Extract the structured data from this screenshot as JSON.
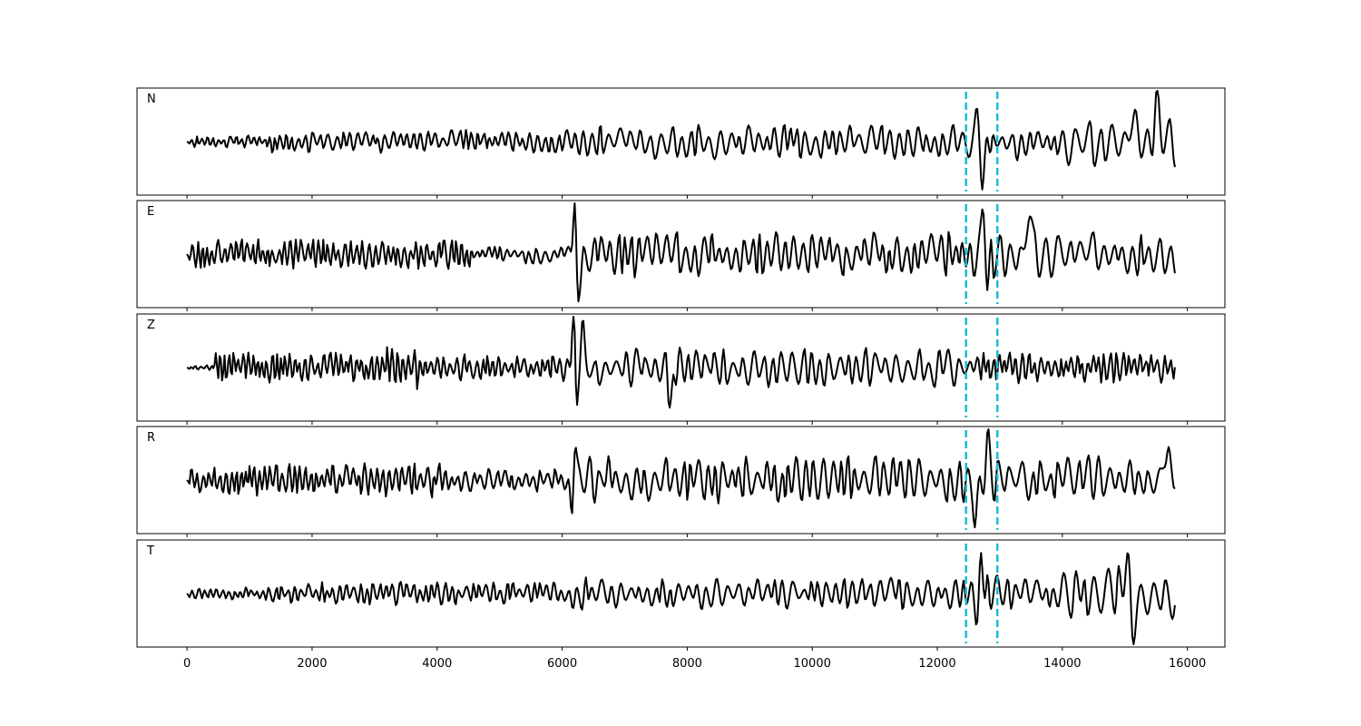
{
  "chart_data": {
    "type": "line",
    "xlim": [
      -800,
      16600
    ],
    "x_ticks": [
      "0",
      "2000",
      "4000",
      "6000",
      "8000",
      "10000",
      "12000",
      "14000",
      "16000"
    ],
    "x_tick_values": [
      0,
      2000,
      4000,
      6000,
      8000,
      10000,
      12000,
      14000,
      16000
    ],
    "x_range": [
      0,
      15800
    ],
    "sample_step": 20,
    "markers": [
      12460,
      12960
    ],
    "marker_color": "#17becf",
    "trace_color": "#000000",
    "grid": false,
    "panels": [
      {
        "label": "N",
        "seed": 11,
        "segments": [
          {
            "x0": 0,
            "x1": 1300,
            "amp": 0.12,
            "period": 90
          },
          {
            "x0": 1300,
            "x1": 6100,
            "amp": 0.22,
            "period": 110
          },
          {
            "x0": 6100,
            "x1": 12460,
            "amp": 0.32,
            "period": 140
          },
          {
            "x0": 12460,
            "x1": 14000,
            "amp": 0.34,
            "period": 150
          },
          {
            "x0": 14000,
            "x1": 15800,
            "amp": 0.48,
            "period": 170
          }
        ],
        "peaks": [
          {
            "x": 12720,
            "amp": -0.95,
            "width": 45
          },
          {
            "x": 12650,
            "amp": 0.65,
            "width": 45
          },
          {
            "x": 15120,
            "amp": 0.62,
            "width": 60
          },
          {
            "x": 15520,
            "amp": 0.58,
            "width": 60
          }
        ]
      },
      {
        "label": "E",
        "seed": 23,
        "segments": [
          {
            "x0": 0,
            "x1": 4500,
            "amp": 0.28,
            "period": 95
          },
          {
            "x0": 4500,
            "x1": 6100,
            "amp": 0.18,
            "period": 110
          },
          {
            "x0": 6100,
            "x1": 12460,
            "amp": 0.42,
            "period": 140
          },
          {
            "x0": 12460,
            "x1": 15800,
            "amp": 0.45,
            "period": 160
          }
        ],
        "peaks": [
          {
            "x": 6200,
            "amp": 0.85,
            "width": 35
          },
          {
            "x": 6250,
            "amp": -0.9,
            "width": 35
          },
          {
            "x": 12740,
            "amp": 0.9,
            "width": 45
          },
          {
            "x": 12800,
            "amp": -0.7,
            "width": 45
          },
          {
            "x": 13470,
            "amp": 0.78,
            "width": 60
          }
        ]
      },
      {
        "label": "Z",
        "seed": 37,
        "segments": [
          {
            "x0": 0,
            "x1": 400,
            "amp": 0.05,
            "period": 90
          },
          {
            "x0": 400,
            "x1": 3000,
            "amp": 0.28,
            "period": 85
          },
          {
            "x0": 3000,
            "x1": 3800,
            "amp": 0.4,
            "period": 85
          },
          {
            "x0": 3800,
            "x1": 6100,
            "amp": 0.25,
            "period": 95
          },
          {
            "x0": 6100,
            "x1": 12460,
            "amp": 0.36,
            "period": 150
          },
          {
            "x0": 12460,
            "x1": 15800,
            "amp": 0.3,
            "period": 100
          }
        ],
        "peaks": [
          {
            "x": 6180,
            "amp": 1.05,
            "width": 30
          },
          {
            "x": 6230,
            "amp": -0.55,
            "width": 30
          },
          {
            "x": 6330,
            "amp": 0.7,
            "width": 35
          },
          {
            "x": 7730,
            "amp": -0.55,
            "width": 55
          }
        ]
      },
      {
        "label": "R",
        "seed": 53,
        "segments": [
          {
            "x0": 0,
            "x1": 4000,
            "amp": 0.32,
            "period": 95
          },
          {
            "x0": 4000,
            "x1": 6100,
            "amp": 0.22,
            "period": 110
          },
          {
            "x0": 6100,
            "x1": 12460,
            "amp": 0.45,
            "period": 140
          },
          {
            "x0": 12460,
            "x1": 15800,
            "amp": 0.45,
            "period": 160
          }
        ],
        "peaks": [
          {
            "x": 6200,
            "amp": 0.9,
            "width": 35
          },
          {
            "x": 6160,
            "amp": -0.85,
            "width": 35
          },
          {
            "x": 12620,
            "amp": -0.95,
            "width": 45
          },
          {
            "x": 12800,
            "amp": 0.78,
            "width": 45
          },
          {
            "x": 15640,
            "amp": 0.7,
            "width": 55
          }
        ]
      },
      {
        "label": "T",
        "seed": 71,
        "segments": [
          {
            "x0": 0,
            "x1": 1300,
            "amp": 0.12,
            "period": 90
          },
          {
            "x0": 1300,
            "x1": 6100,
            "amp": 0.22,
            "period": 105
          },
          {
            "x0": 6100,
            "x1": 12460,
            "amp": 0.3,
            "period": 140
          },
          {
            "x0": 12460,
            "x1": 14000,
            "amp": 0.38,
            "period": 150
          },
          {
            "x0": 14000,
            "x1": 15800,
            "amp": 0.5,
            "period": 170
          }
        ],
        "peaks": [
          {
            "x": 12690,
            "amp": 0.95,
            "width": 40
          },
          {
            "x": 12650,
            "amp": -0.9,
            "width": 40
          },
          {
            "x": 15120,
            "amp": -0.75,
            "width": 60
          },
          {
            "x": 15050,
            "amp": 0.6,
            "width": 60
          }
        ]
      }
    ]
  }
}
